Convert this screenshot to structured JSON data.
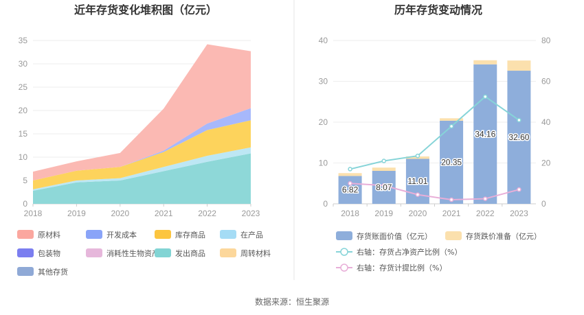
{
  "chart_data": [
    {
      "type": "area",
      "title": "近年存货变化堆积图（亿元）",
      "categories": [
        "2018",
        "2019",
        "2020",
        "2021",
        "2022",
        "2023"
      ],
      "ylim": [
        0,
        35
      ],
      "yticks": [
        "0",
        "5",
        "10",
        "15",
        "20",
        "25",
        "30",
        "35"
      ],
      "stack_order": [
        "发出商品",
        "在产品",
        "库存商品",
        "开发成本",
        "原材料"
      ],
      "series": [
        {
          "name": "发出商品",
          "color": "#8ed8d8",
          "values": [
            2.8,
            4.6,
            5.0,
            7.0,
            9.0,
            10.8
          ]
        },
        {
          "name": "在产品",
          "color": "#bde7f4",
          "values": [
            0.3,
            0.4,
            0.5,
            0.9,
            1.3,
            1.3
          ]
        },
        {
          "name": "库存商品",
          "color": "#fdd35c",
          "values": [
            1.9,
            2.1,
            2.4,
            3.2,
            5.5,
            5.8
          ]
        },
        {
          "name": "开发成本",
          "color": "#a7b8fb",
          "values": [
            0.0,
            0.0,
            0.0,
            0.3,
            1.4,
            2.6
          ]
        },
        {
          "name": "原材料",
          "color": "#fbb9b3",
          "values": [
            1.9,
            2.0,
            3.0,
            9.0,
            17.0,
            12.2
          ]
        }
      ],
      "legend": [
        {
          "name": "原材料",
          "color": "#fba79f"
        },
        {
          "name": "开发成本",
          "color": "#8aa4f8"
        },
        {
          "name": "库存商品",
          "color": "#fcc53f"
        },
        {
          "name": "在产品",
          "color": "#a5dcf5"
        },
        {
          "name": "包装物",
          "color": "#7b7ef0"
        },
        {
          "name": "消耗性生物资产",
          "color": "#e6b7db"
        },
        {
          "name": "发出商品",
          "color": "#82d4d4"
        },
        {
          "name": "周转材料",
          "color": "#fcd79b"
        },
        {
          "name": "其他存货",
          "color": "#8fa9d6"
        }
      ],
      "grid": true
    },
    {
      "type": "bar",
      "title": "历年存货变动情况",
      "categories": [
        "2018",
        "2019",
        "2020",
        "2021",
        "2022",
        "2023"
      ],
      "ylim_left": [
        0,
        40
      ],
      "ylim_right": [
        0,
        80
      ],
      "yticks_left": [
        "0",
        "10",
        "20",
        "30",
        "40"
      ],
      "yticks_right": [
        "0",
        "20",
        "40",
        "60",
        "80"
      ],
      "bars": {
        "book_value": {
          "name": "存货账面价值（亿元）",
          "color": "#8eaedb",
          "values": [
            6.82,
            8.07,
            11.01,
            20.35,
            34.16,
            32.6
          ],
          "labels": [
            "6.82",
            "8.07",
            "11.01",
            "20.35",
            "34.16",
            "32.60"
          ]
        },
        "impairment": {
          "name": "存货跌价准备（亿元）",
          "color": "#fbe0ad",
          "values": [
            0.7,
            0.8,
            0.6,
            0.6,
            1.0,
            2.5
          ]
        }
      },
      "lines": [
        {
          "name": "右轴：存货占净资产比例（%）",
          "color": "#86d4d8",
          "axis": "right",
          "values": [
            17.0,
            21.0,
            23.5,
            38.0,
            52.5,
            41.0
          ]
        },
        {
          "name": "右轴：存货计提比例（%）",
          "color": "#e8aed8",
          "axis": "right",
          "values": [
            10.0,
            9.0,
            4.5,
            2.0,
            2.5,
            7.0
          ]
        }
      ],
      "grid": true
    }
  ],
  "footer": {
    "source": "数据来源：恒生聚源"
  }
}
